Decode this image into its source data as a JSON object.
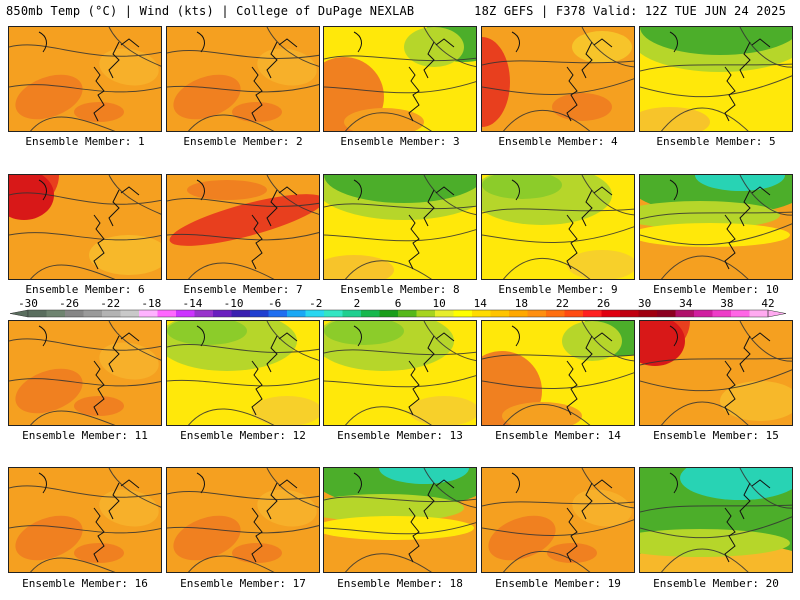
{
  "header": {
    "left": "850mb Temp (°C) | Wind (kts) | College of DuPage NEXLAB",
    "right": "18Z GEFS | F378 Valid: 12Z TUE JUN 24 2025"
  },
  "members": [
    {
      "label": "Ensemble Member: 1",
      "scheme": "warm"
    },
    {
      "label": "Ensemble Member: 2",
      "scheme": "warm"
    },
    {
      "label": "Ensemble Member: 3",
      "scheme": "mixed-ne-green"
    },
    {
      "label": "Ensemble Member: 4",
      "scheme": "hot-west"
    },
    {
      "label": "Ensemble Member: 5",
      "scheme": "green-north"
    },
    {
      "label": "Ensemble Member: 6",
      "scheme": "hot-nw"
    },
    {
      "label": "Ensemble Member: 7",
      "scheme": "warm-red-band"
    },
    {
      "label": "Ensemble Member: 8",
      "scheme": "green-north"
    },
    {
      "label": "Ensemble Member: 9",
      "scheme": "yellow-green"
    },
    {
      "label": "Ensemble Member: 10",
      "scheme": "teal-north"
    },
    {
      "label": "Ensemble Member: 11",
      "scheme": "warm"
    },
    {
      "label": "Ensemble Member: 12",
      "scheme": "yellow-green"
    },
    {
      "label": "Ensemble Member: 13",
      "scheme": "yellow-green"
    },
    {
      "label": "Ensemble Member: 14",
      "scheme": "mixed-ne-green"
    },
    {
      "label": "Ensemble Member: 15",
      "scheme": "hot-nw"
    },
    {
      "label": "Ensemble Member: 16",
      "scheme": "warm"
    },
    {
      "label": "Ensemble Member: 17",
      "scheme": "warm"
    },
    {
      "label": "Ensemble Member: 18",
      "scheme": "teal-north"
    },
    {
      "label": "Ensemble Member: 19",
      "scheme": "warm"
    },
    {
      "label": "Ensemble Member: 20",
      "scheme": "teal-strong"
    }
  ],
  "colorbar": {
    "ticks": [
      "-30",
      "-26",
      "-22",
      "-18",
      "-14",
      "-10",
      "-6",
      "-2",
      "2",
      "6",
      "10",
      "14",
      "18",
      "22",
      "26",
      "30",
      "34",
      "38",
      "42"
    ],
    "colors": [
      "#5a6e5e",
      "#6f8470",
      "#868686",
      "#9a9a9a",
      "#b3b3b3",
      "#c9c9c9",
      "#ffb3ff",
      "#ff66ff",
      "#cc33ff",
      "#9933cc",
      "#6a1fbf",
      "#3a1fb0",
      "#1f3fd0",
      "#1e6ef0",
      "#19a8f5",
      "#28d7f0",
      "#33e6c3",
      "#1fcf8f",
      "#17b84e",
      "#1a9e1a",
      "#56b81a",
      "#a6d41e",
      "#e7ee2a",
      "#ffff00",
      "#ffdc00",
      "#ffc400",
      "#ffa800",
      "#ff8f10",
      "#ff6f10",
      "#ff4b12",
      "#ff2020",
      "#e00010",
      "#c00010",
      "#a00010",
      "#8c0020",
      "#b0106a",
      "#d01ea0",
      "#ee3cc8",
      "#ff66e6",
      "#ffaaf0"
    ]
  },
  "palette": {
    "green": "#4cae2a",
    "lime": "#b6d62a",
    "yellow": "#ffe80a",
    "orange": "#f5a020",
    "dark_orange": "#f08020",
    "red": "#e83f1e",
    "teal": "#28d3b4",
    "contour": "#333333"
  }
}
